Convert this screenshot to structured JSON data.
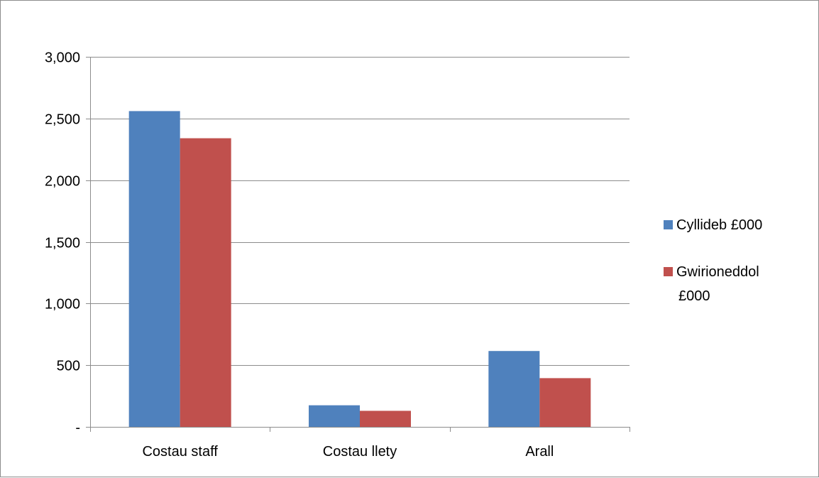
{
  "chart_data": {
    "type": "bar",
    "title": "",
    "xlabel": "",
    "ylabel": "",
    "categories": [
      "Costau staff",
      "Costau llety",
      "Arall"
    ],
    "series": [
      {
        "name": "Cyllideb £000",
        "values": [
          2560,
          175,
          615
        ],
        "color": "#4f81bd"
      },
      {
        "name": "Gwirioneddol £000",
        "values": [
          2340,
          130,
          395
        ],
        "color": "#c0504d"
      }
    ],
    "ylim": [
      0,
      3000
    ],
    "yticks": [
      0,
      500,
      1000,
      1500,
      2000,
      2500,
      3000
    ],
    "ytick_labels": [
      "-",
      "500",
      "1,000",
      "1,500",
      "2,000",
      "2,500",
      "3,000"
    ],
    "grid": true,
    "legend_position": "right"
  },
  "colors": {
    "gridline": "#8c8c8c",
    "axis": "#8c8c8c",
    "frame_border": "#8c8c8c"
  }
}
